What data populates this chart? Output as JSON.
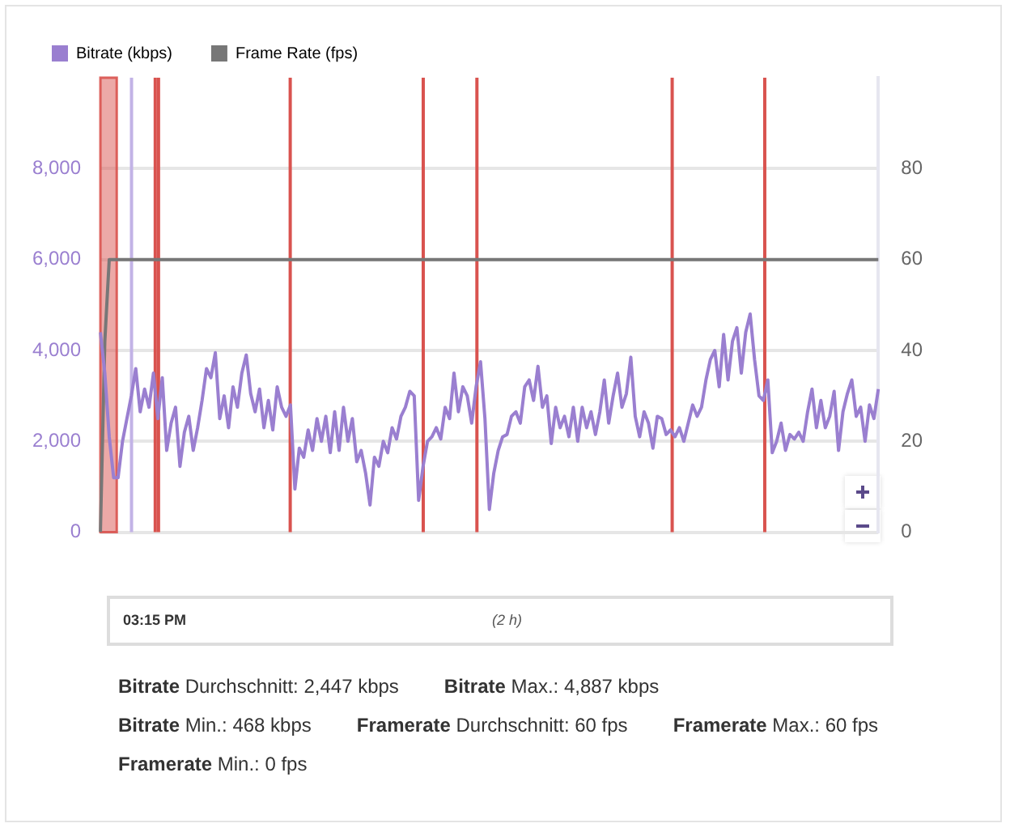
{
  "chart_data": {
    "type": "line",
    "legend": "top left",
    "grid": "y",
    "marker": "none",
    "line_style": "solid",
    "categories": [
      null,
      null,
      null,
      null,
      null,
      null,
      null,
      null,
      null,
      null,
      null,
      null,
      null,
      null,
      null,
      null,
      null,
      null,
      null,
      null,
      null,
      null,
      null,
      null,
      null,
      null,
      null,
      null,
      null,
      null,
      null,
      null,
      null,
      null,
      null,
      null,
      null,
      null,
      null,
      null,
      null,
      null,
      null,
      null,
      null,
      null,
      null,
      null,
      null,
      null,
      null,
      null,
      null,
      null,
      null,
      null,
      null,
      null,
      null,
      null,
      null,
      null,
      null,
      null,
      null,
      null,
      null,
      null,
      null,
      null,
      null,
      null,
      null,
      null,
      null,
      null,
      null,
      null,
      null,
      null,
      null,
      null,
      null,
      null,
      null,
      null,
      null,
      null,
      null,
      null,
      null,
      null,
      null,
      null,
      null,
      null,
      null,
      null,
      null,
      null,
      null,
      null,
      null,
      null,
      null,
      null,
      null,
      null,
      null,
      null,
      null,
      null,
      null,
      null,
      null,
      null,
      null,
      null,
      null,
      null,
      null,
      null,
      null,
      null,
      null,
      null,
      null,
      null,
      null,
      null,
      null,
      null,
      null,
      null,
      null,
      null,
      null,
      null,
      null,
      null,
      null,
      null,
      null,
      null,
      null,
      null,
      null,
      null,
      null,
      null,
      null,
      null,
      null,
      null,
      null,
      null,
      null,
      null,
      null,
      null,
      null,
      null,
      null,
      null,
      null,
      null,
      null,
      null,
      null,
      null,
      null,
      null,
      null,
      null,
      null,
      null,
      null
    ],
    "ylim": [
      0,
      10000
    ],
    "yticks": [
      0,
      {
        "value": 2000,
        "label": "2,000"
      },
      {
        "value": 4000,
        "label": "4,000"
      },
      {
        "value": 6000,
        "label": "6,000"
      },
      {
        "value": 8000,
        "label": "8,000"
      }
    ],
    "y2lim": [
      0,
      100
    ],
    "y2ticks": [
      0,
      20,
      40,
      60,
      80
    ],
    "series": [
      {
        "name": "Bitrate (kbps)",
        "color": "#9a7fd0",
        "values": [
          4400,
          3500,
          2100,
          1200,
          1200,
          2000,
          2500,
          3000,
          3600,
          2650,
          3150,
          2750,
          3500,
          2500,
          3400,
          1800,
          2400,
          2750,
          1450,
          2200,
          2550,
          1800,
          2300,
          2900,
          3600,
          3400,
          3950,
          2500,
          3000,
          2300,
          3200,
          2750,
          3500,
          3900,
          3050,
          2650,
          3150,
          2300,
          2900,
          2250,
          3200,
          2750,
          2550,
          2800,
          950,
          1850,
          1650,
          2250,
          1800,
          2500,
          2000,
          2550,
          1750,
          2650,
          1800,
          2750,
          2000,
          2500,
          1550,
          1800,
          1300,
          600,
          1650,
          1450,
          2000,
          1750,
          2300,
          2050,
          2550,
          2750,
          3100,
          3000,
          700,
          1450,
          2000,
          2100,
          2300,
          2050,
          2750,
          2500,
          3500,
          2650,
          3200,
          3000,
          2400,
          3200,
          3750,
          2500,
          500,
          1300,
          1800,
          2100,
          2150,
          2550,
          2650,
          2400,
          3200,
          3350,
          2900,
          3650,
          2750,
          3000,
          1950,
          2750,
          2300,
          2550,
          2100,
          2750,
          2000,
          2750,
          2300,
          2650,
          2150,
          2650,
          3350,
          2400,
          3000,
          3500,
          2750,
          3050,
          3850,
          2550,
          2100,
          2650,
          2400,
          1850,
          2550,
          2500,
          2150,
          2250,
          2100,
          2300,
          2000,
          2400,
          2800,
          2550,
          2750,
          3350,
          3800,
          4000,
          3200,
          4350,
          3350,
          4200,
          4500,
          3500,
          4400,
          4800,
          3800,
          3000,
          2900,
          3350,
          1750,
          2000,
          2400,
          1800,
          2150,
          2050,
          2200,
          2000,
          2650,
          3150,
          2300,
          2900,
          2300,
          2550,
          3100,
          1800,
          2650,
          3050,
          3350,
          2550,
          2750,
          2000,
          2800,
          2500,
          3150
        ]
      },
      {
        "name": "Frame Rate (fps)",
        "color": "#777777",
        "axis": "y2",
        "values": [
          0,
          42,
          60,
          60,
          60,
          60,
          60,
          60,
          60,
          60,
          60,
          60,
          60,
          60,
          60,
          60,
          60,
          60,
          60,
          60,
          60,
          60,
          60,
          60,
          60,
          60,
          60,
          60,
          60,
          60,
          60,
          60,
          60,
          60,
          60,
          60,
          60,
          60,
          60,
          60,
          60,
          60,
          60,
          60,
          60,
          60,
          60,
          60,
          60,
          60,
          60,
          60,
          60,
          60,
          60,
          60,
          60,
          60,
          60,
          60,
          60,
          60,
          60,
          60,
          60,
          60,
          60,
          60,
          60,
          60,
          60,
          60,
          60,
          60,
          60,
          60,
          60,
          60,
          60,
          60,
          60,
          60,
          60,
          60,
          60,
          60,
          60,
          60,
          60,
          60,
          60,
          60,
          60,
          60,
          60,
          60,
          60,
          60,
          60,
          60,
          60,
          60,
          60,
          60,
          60,
          60,
          60,
          60,
          60,
          60,
          60,
          60,
          60,
          60,
          60,
          60,
          60,
          60,
          60,
          60,
          60,
          60,
          60,
          60,
          60,
          60,
          60,
          60,
          60,
          60,
          60,
          60,
          60,
          60,
          60,
          60,
          60,
          60,
          60,
          60,
          60,
          60,
          60,
          60,
          60,
          60,
          60,
          60,
          60,
          60,
          60,
          60,
          60,
          60,
          60,
          60,
          60,
          60,
          60,
          60,
          60,
          60,
          60,
          60,
          60,
          60,
          60,
          60,
          60,
          60,
          60,
          60,
          60,
          60,
          60,
          60,
          60
        ]
      }
    ],
    "annotations": [
      "03:15 PM",
      "(2 h)",
      "Bitrate Durchschnitt: 2,447 kbps",
      "Bitrate Max.: 4,887 kbps",
      "Bitrate Min.: 468 kbps",
      "Framerate Durchschnitt: 60 fps",
      "Framerate Max.: 60 fps",
      "Framerate Min.: 0 fps"
    ]
  }
}
